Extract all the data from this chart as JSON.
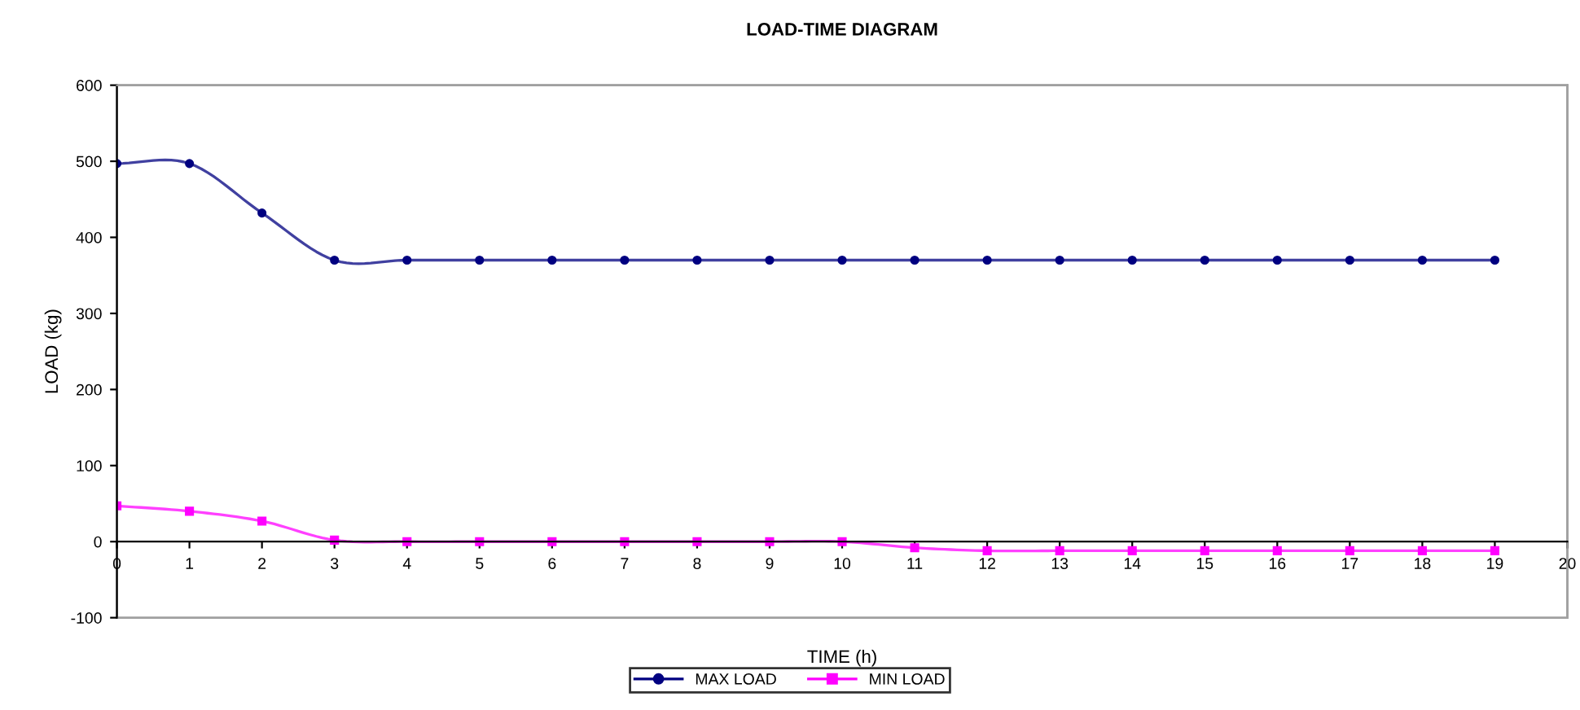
{
  "chart_data": {
    "type": "line",
    "title": "LOAD-TIME DIAGRAM",
    "xlabel": "TIME (h)",
    "ylabel": "LOAD (kg)",
    "x": [
      0,
      1,
      2,
      3,
      4,
      5,
      6,
      7,
      8,
      9,
      10,
      11,
      12,
      13,
      14,
      15,
      16,
      17,
      18,
      19
    ],
    "series": [
      {
        "name": "MAX LOAD",
        "color": "#000080",
        "marker": "circle",
        "values": [
          497,
          497,
          432,
          370,
          370,
          370,
          370,
          370,
          370,
          370,
          370,
          370,
          370,
          370,
          370,
          370,
          370,
          370,
          370,
          370
        ]
      },
      {
        "name": "MIN LOAD",
        "color": "#ff00ff",
        "marker": "square",
        "values": [
          47,
          40,
          27,
          2,
          0,
          0,
          0,
          0,
          0,
          0,
          0,
          -8,
          -12,
          -12,
          -12,
          -12,
          -12,
          -12,
          -12,
          -12
        ]
      }
    ],
    "xlim": [
      0,
      20
    ],
    "xticks": [
      0,
      1,
      2,
      3,
      4,
      5,
      6,
      7,
      8,
      9,
      10,
      11,
      12,
      13,
      14,
      15,
      16,
      17,
      18,
      19,
      20
    ],
    "ylim": [
      -100,
      600
    ],
    "yticks": [
      -100,
      0,
      100,
      200,
      300,
      400,
      500,
      600
    ],
    "grid": false,
    "legend": "bottom",
    "line_style": "solid"
  }
}
